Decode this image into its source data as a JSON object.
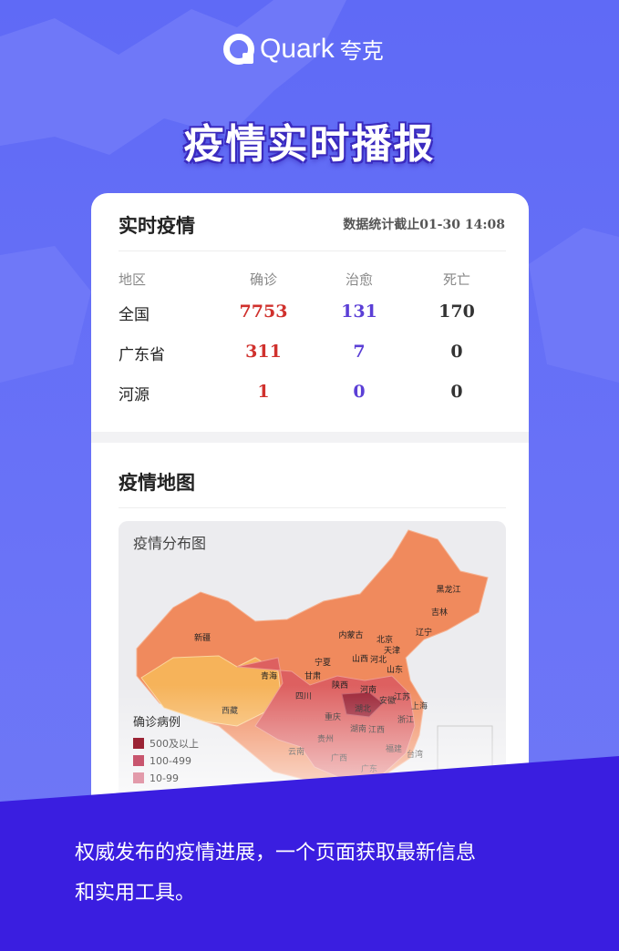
{
  "header": {
    "brand": "Quark",
    "brand_cn": "夸克",
    "title": "疫情实时播报"
  },
  "live": {
    "title": "实时疫情",
    "updated": "数据统计截止01-30 14:08",
    "table": {
      "columns": [
        "地区",
        "确诊",
        "治愈",
        "死亡"
      ],
      "rows": [
        [
          "全国",
          7753,
          131,
          170
        ],
        [
          "广东省",
          311,
          7,
          0
        ],
        [
          "河源",
          1,
          0,
          0
        ]
      ]
    }
  },
  "map": {
    "title": "疫情地图",
    "map_title": "疫情分布图",
    "regions": [
      "新疆",
      "西藏",
      "青海",
      "甘肃",
      "内蒙古",
      "宁夏",
      "陕西",
      "山西",
      "北京",
      "天津",
      "河北",
      "辽宁",
      "吉林",
      "黑龙江",
      "山东",
      "河南",
      "湖北",
      "安徽",
      "江苏",
      "上海",
      "四川",
      "重庆",
      "贵州",
      "湖南",
      "江西",
      "浙江",
      "云南",
      "广西",
      "广东",
      "福建",
      "台湾"
    ],
    "legend": {
      "title": "确诊病例",
      "items": [
        "500及以上",
        "100-499",
        "10-99"
      ]
    }
  },
  "caption": {
    "lines": [
      "权威发布的疫情进展，一个页面获取最新信息",
      "和实用工具。"
    ]
  }
}
